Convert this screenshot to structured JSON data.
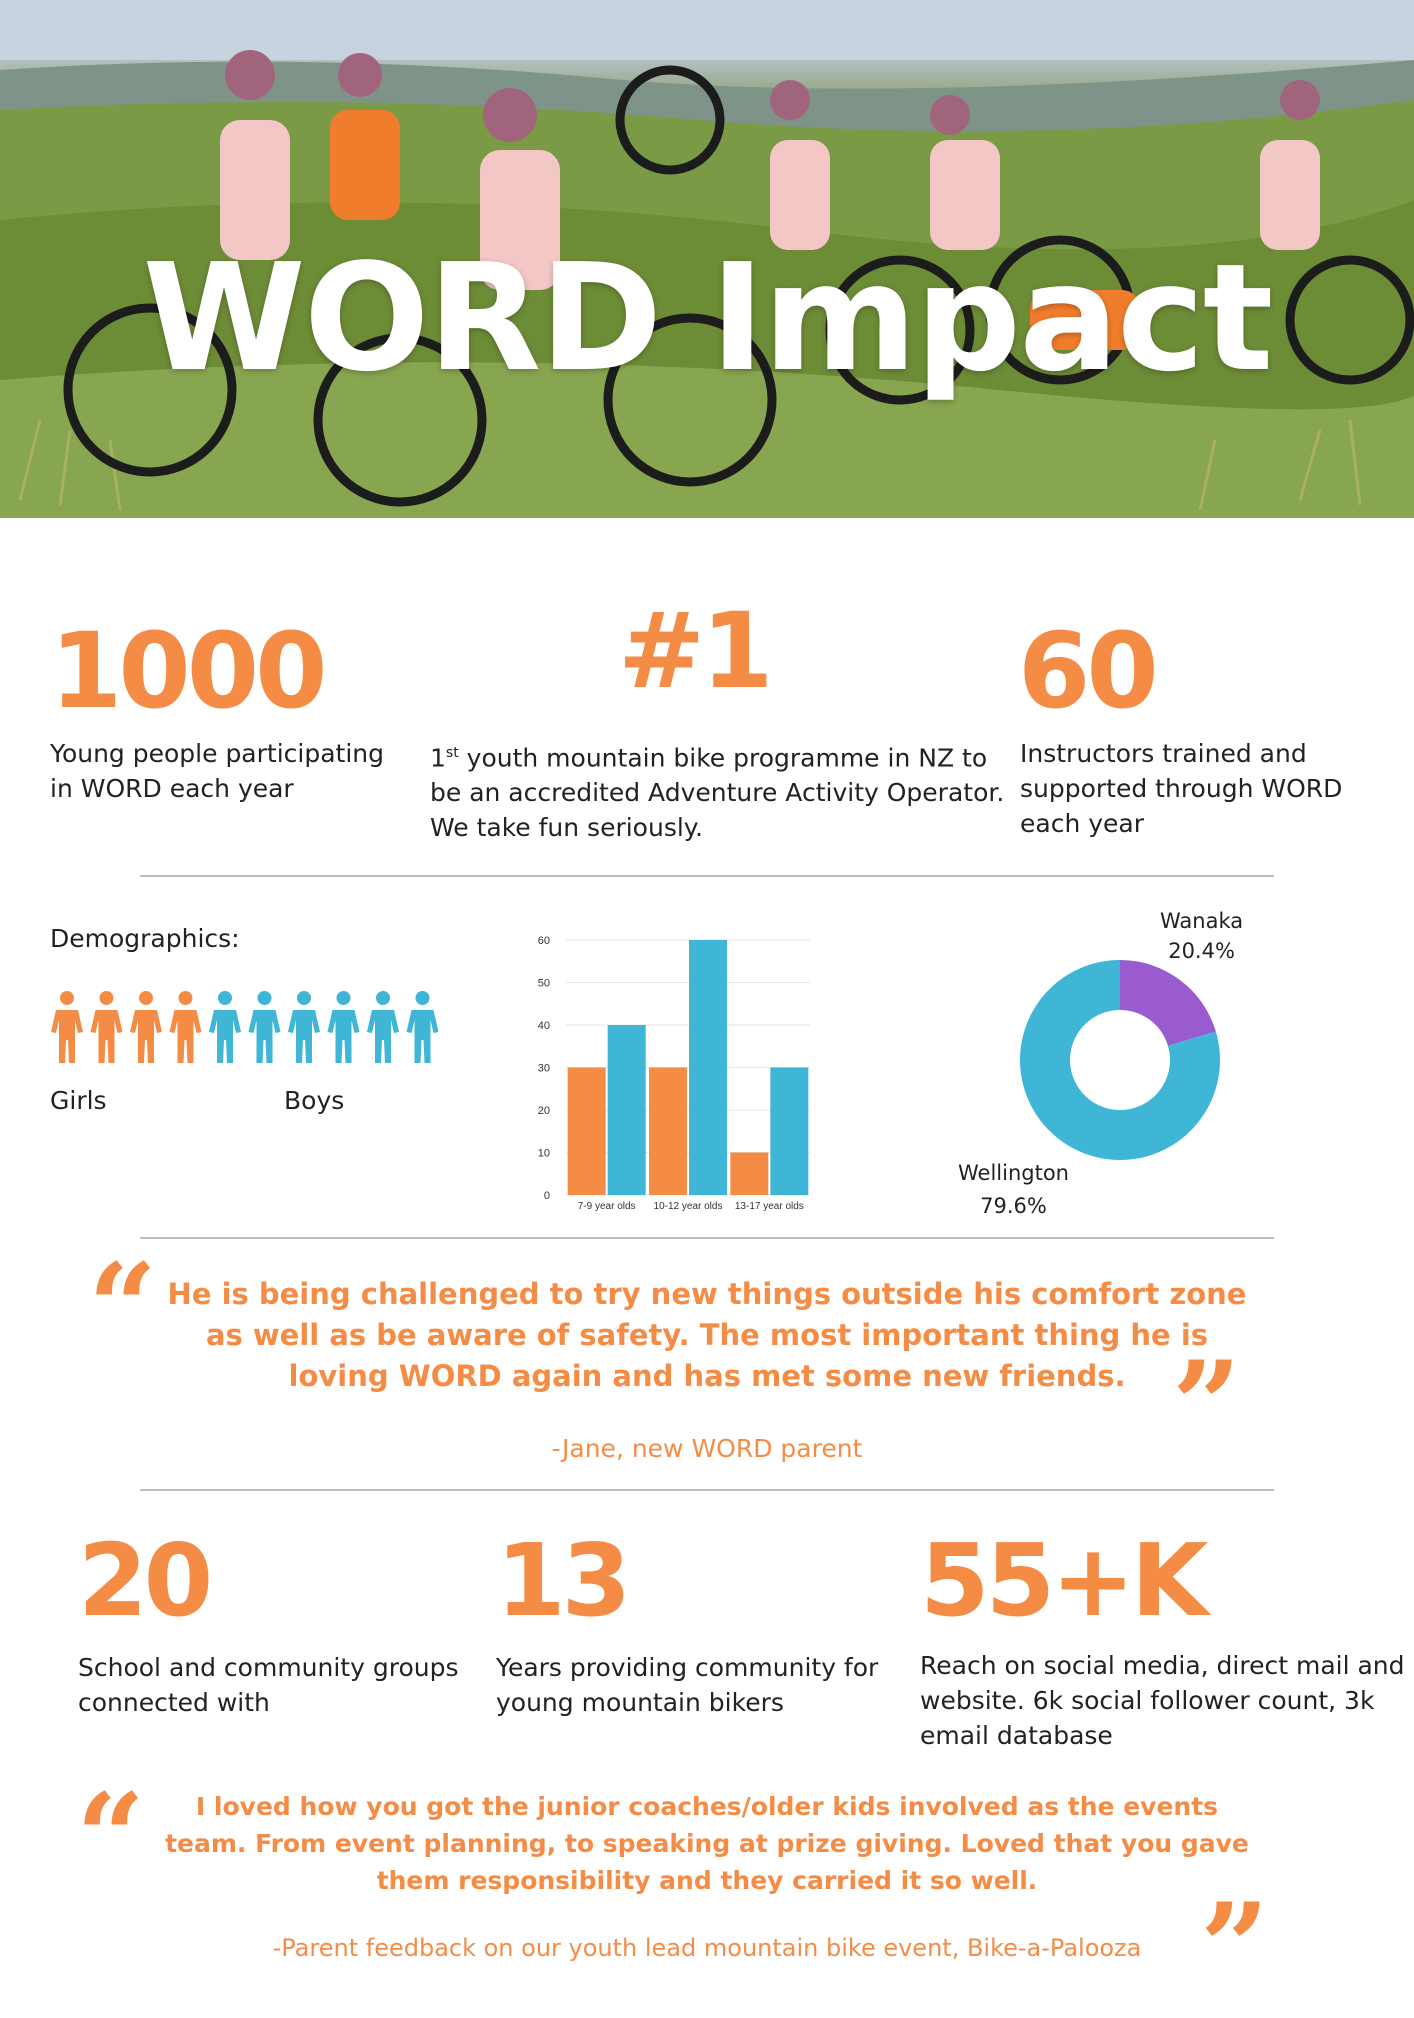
{
  "hero": {
    "title": "WORD Impact"
  },
  "stats_top": [
    {
      "value": "1000",
      "text": "Young people participating in WORD each year",
      "lines": [
        "Young people participating",
        "in WORD each year"
      ]
    },
    {
      "value": "#1",
      "sup": "st",
      "lines": [
        "1",
        " youth mountain bike programme in NZ to",
        "be an accredited Adventure Activity Operator.",
        "We take fun seriously."
      ]
    },
    {
      "value": "60",
      "lines": [
        "Instructors trained and",
        "supported through WORD",
        "each year"
      ]
    }
  ],
  "demographics": {
    "label": "Demographics:",
    "girls_label": "Girls",
    "boys_label": "Boys",
    "girls_icons": 4,
    "boys_icons": 6,
    "colors": {
      "girls": "#f48c46",
      "boys": "#3fb6d6"
    }
  },
  "chart_data": [
    {
      "type": "bar",
      "categories": [
        "7-9 year olds",
        "10-12 year olds",
        "13-17 year olds"
      ],
      "series": [
        {
          "values": [
            30,
            30,
            10
          ],
          "color": "#f48c46"
        },
        {
          "values": [
            40,
            60,
            30
          ],
          "color": "#3fb6d6"
        }
      ],
      "ylim": [
        0,
        60
      ],
      "yticks": [
        0,
        10,
        20,
        30,
        40,
        50,
        60
      ],
      "grid": true
    },
    {
      "type": "pie",
      "donut": true,
      "slices": [
        {
          "label": "Wanaka",
          "pct_text": "20.4%",
          "value": 20.4,
          "color": "#9a5bd0"
        },
        {
          "label": "Wellington",
          "pct_text": "79.6%",
          "value": 79.6,
          "color": "#3fb6d6"
        }
      ]
    }
  ],
  "quote1": {
    "lines": [
      "He is being challenged to try new things outside his comfort zone",
      "as well as be aware of safety. The most important thing he is",
      "loving WORD again and has met some new friends."
    ],
    "attribution": "-Jane, new WORD parent"
  },
  "stats_bottom": [
    {
      "value": "20",
      "lines": [
        "School and community groups",
        "connected with"
      ]
    },
    {
      "value": "13",
      "lines": [
        "Years providing community for",
        "young mountain bikers"
      ]
    },
    {
      "value": "55+K",
      "lines": [
        "Reach on social media, direct mail and",
        "website. 6k social follower count, 3k",
        "email database"
      ]
    }
  ],
  "quote2": {
    "lines": [
      "I loved how you got the junior coaches/older kids involved as the events",
      "team. From event planning, to speaking at prize giving. Loved that you gave",
      "them responsibility and they carried it so well."
    ],
    "attribution": "-Parent feedback on our youth lead mountain bike event, Bike-a-Palooza"
  },
  "colors": {
    "accent": "#f48c46",
    "blue": "#3fb6d6",
    "purple": "#9a5bd0",
    "divider": "#bdbdbd"
  }
}
